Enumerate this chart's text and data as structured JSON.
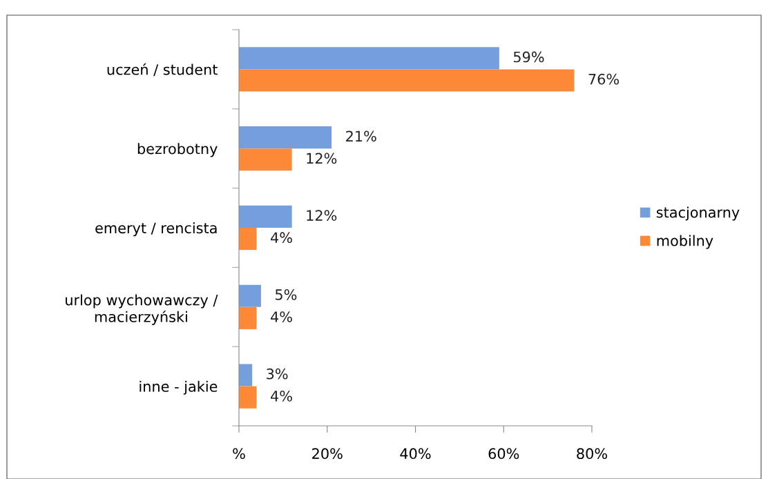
{
  "chart_data": {
    "type": "bar",
    "orientation": "horizontal",
    "categories": [
      "uczeń / student",
      "bezrobotny",
      "emeryt / rencista",
      "urlop wychowawczy / macierzyński",
      "inne - jakie"
    ],
    "series": [
      {
        "name": "stacjonarny",
        "color": "#759fdc",
        "values": [
          59,
          21,
          12,
          5,
          3
        ],
        "value_labels": [
          "59%",
          "21%",
          "12%",
          "5%",
          "3%"
        ]
      },
      {
        "name": "mobilny",
        "color": "#fe8a37",
        "values": [
          76,
          12,
          4,
          4,
          4
        ],
        "value_labels": [
          "76%",
          "12%",
          "4%",
          "4%",
          "4%"
        ]
      }
    ],
    "xlim": [
      0,
      80
    ],
    "xticks": [
      {
        "value": 0,
        "label": "%"
      },
      {
        "value": 20,
        "label": "20%"
      },
      {
        "value": 40,
        "label": "40%"
      },
      {
        "value": 60,
        "label": "60%"
      },
      {
        "value": 80,
        "label": "80%"
      }
    ],
    "grid": false,
    "legend": "right"
  }
}
